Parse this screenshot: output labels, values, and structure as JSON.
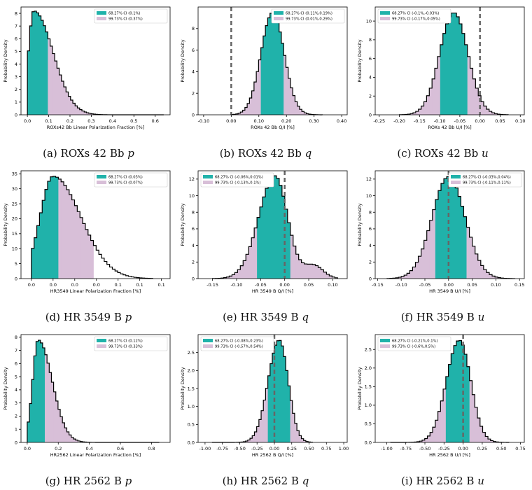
{
  "colors": {
    "ci68": "#20b2aa",
    "ci99": "#d8bfd8",
    "outline": "#000000",
    "refline": "#666666"
  },
  "panels": [
    {
      "caption_prefix": "(a) ROXs 42 Bb",
      "caption_var": "p",
      "chart_data": {
        "type": "histogram",
        "xlabel": "ROXs42 Bb Linear Polarization Fraction [%]",
        "ylabel": "Probability Density",
        "xlim": [
          -0.03,
          0.67
        ],
        "ylim": [
          0,
          8.5
        ],
        "xticks": [
          0.0,
          0.1,
          0.2,
          0.3,
          0.4,
          0.5,
          0.6
        ],
        "xtick_labels": [
          "0.0",
          "0.1",
          "0.2",
          "0.3",
          "0.4",
          "0.5",
          "0.6"
        ],
        "yticks": [
          0,
          1,
          2,
          3,
          4,
          5,
          6,
          7,
          8
        ],
        "dist": "skew",
        "peak_x": 0.03,
        "sigma_left": 0.025,
        "sigma_right": 0.09,
        "peak_y": 8.2,
        "hist_min": 0.0,
        "hist_max": 0.64,
        "bins": 60,
        "ci68": [
          0.0,
          0.1
        ],
        "ci99": [
          0.0,
          0.37
        ],
        "refline": null,
        "legend": {
          "pos": "top-right",
          "entries": [
            "68.27% CI (0.1%)",
            "99.73% CI (0.37%)"
          ]
        }
      }
    },
    {
      "caption_prefix": "(b) ROXs 42 Bb",
      "caption_var": "q",
      "chart_data": {
        "type": "histogram",
        "xlabel": "ROXs 42 Bb Q/I [%]",
        "ylabel": "Probability Density",
        "xlim": [
          -0.12,
          0.42
        ],
        "ylim": [
          0,
          10
        ],
        "xticks": [
          -0.1,
          0.0,
          0.1,
          0.2,
          0.3,
          0.4
        ],
        "xtick_labels": [
          "-0.10",
          "0.00",
          "0.10",
          "0.20",
          "0.30",
          "0.40"
        ],
        "yticks": [
          0,
          2,
          4,
          6,
          8
        ],
        "dist": "normal",
        "peak_x": 0.15,
        "sigma_left": 0.042,
        "sigma_right": 0.042,
        "peak_y": 9.5,
        "hist_min": 0.0,
        "hist_max": 0.33,
        "bins": 40,
        "ci68": [
          0.11,
          0.19
        ],
        "ci99": [
          0.01,
          0.29
        ],
        "refline": 0.0,
        "legend": {
          "pos": "top-right",
          "entries": [
            "68.27% CI (0.11%,0.19%)",
            "99.73% CI (0.01%,0.29%)"
          ]
        }
      }
    },
    {
      "caption_prefix": "(c) ROXs 42 Bb",
      "caption_var": "u",
      "chart_data": {
        "type": "histogram",
        "xlabel": "ROXs 42 Bb U/I [%]",
        "ylabel": "Probability Density",
        "xlim": [
          -0.26,
          0.11
        ],
        "ylim": [
          0,
          11.5
        ],
        "xticks": [
          -0.25,
          -0.2,
          -0.15,
          -0.1,
          -0.05,
          0.0,
          0.05,
          0.1
        ],
        "xtick_labels": [
          "-0.25",
          "-0.20",
          "-0.15",
          "-0.10",
          "-0.05",
          "0.00",
          "0.05",
          "0.10"
        ],
        "yticks": [
          0,
          2,
          4,
          6,
          8,
          10
        ],
        "dist": "normal",
        "peak_x": -0.065,
        "sigma_left": 0.035,
        "sigma_right": 0.035,
        "peak_y": 10.9,
        "hist_min": -0.2,
        "hist_max": 0.07,
        "bins": 40,
        "ci68": [
          -0.1,
          -0.03
        ],
        "ci99": [
          -0.17,
          0.05
        ],
        "refline": 0.0,
        "legend": {
          "pos": "top-left",
          "entries": [
            "68.27% CI (-0.1%,-0.03%)",
            "99.73% CI (-0.17%,0.05%)"
          ]
        }
      }
    },
    {
      "caption_prefix": "(d) HR 3549 B",
      "caption_var": "p",
      "chart_data": {
        "type": "histogram",
        "xlabel": "HR3549 Linear Polarization Fraction [%]",
        "ylabel": "Probability Density",
        "xlim": [
          -0.012,
          0.16
        ],
        "ylim": [
          0,
          36
        ],
        "xticks": [
          0.0,
          0.025,
          0.05,
          0.075,
          0.1,
          0.125,
          0.15
        ],
        "xtick_labels": [
          "0.0",
          "0.0",
          "0.0",
          "0.0",
          "0.1",
          "0.1",
          "0.1"
        ],
        "yticks": [
          0,
          5,
          10,
          15,
          20,
          25,
          30,
          35
        ],
        "dist": "skew",
        "peak_x": 0.025,
        "sigma_left": 0.015,
        "sigma_right": 0.032,
        "peak_y": 34.2,
        "hist_min": 0.0,
        "hist_max": 0.14,
        "bins": 45,
        "ci68": [
          0.0,
          0.03
        ],
        "ci99": [
          0.0,
          0.07
        ],
        "refline": null,
        "legend": {
          "pos": "top-right",
          "entries": [
            "68.27% CI (0.03%)",
            "99.73% CI (0.07%)"
          ]
        }
      }
    },
    {
      "caption_prefix": "(e) HR 3549 B",
      "caption_var": "q",
      "chart_data": {
        "type": "histogram",
        "xlabel": "HR 3549 B Q/I [%]",
        "ylabel": "Probability Density",
        "xlim": [
          -0.18,
          0.13
        ],
        "ylim": [
          0,
          13
        ],
        "xticks": [
          -0.15,
          -0.1,
          -0.05,
          0.0,
          0.05,
          0.1
        ],
        "xtick_labels": [
          "-0.15",
          "-0.10",
          "-0.05",
          "0.00",
          "0.05",
          "0.10"
        ],
        "yticks": [
          0,
          2,
          4,
          6,
          8,
          10,
          12
        ],
        "dist": "normal",
        "peak_x": -0.02,
        "sigma_left": 0.034,
        "sigma_right": 0.026,
        "peak_y": 12.4,
        "hist_min": -0.15,
        "hist_max": 0.11,
        "bins": 45,
        "ci68": [
          -0.06,
          0.01
        ],
        "ci99": [
          -0.13,
          0.1
        ],
        "refline": 0.0,
        "bump": [
          0.06,
          0.02,
          1.6
        ],
        "legend": {
          "pos": "top-left",
          "entries": [
            "68.27% CI (-0.06%,0.01%)",
            "99.73% CI (-0.13%,0.1%)"
          ]
        }
      }
    },
    {
      "caption_prefix": "(f) HR 3549 B",
      "caption_var": "u",
      "chart_data": {
        "type": "histogram",
        "xlabel": "HR 3549 B U/I [%]",
        "ylabel": "Probability Density",
        "xlim": [
          -0.155,
          0.16
        ],
        "ylim": [
          0,
          13
        ],
        "xticks": [
          -0.15,
          -0.1,
          -0.05,
          0.0,
          0.05,
          0.1,
          0.15
        ],
        "xtick_labels": [
          "-0.15",
          "-0.10",
          "-0.05",
          "0.00",
          "0.05",
          "0.10",
          "0.15"
        ],
        "yticks": [
          0,
          2,
          4,
          6,
          8,
          10,
          12
        ],
        "dist": "normal",
        "peak_x": 0.0,
        "sigma_left": 0.035,
        "sigma_right": 0.035,
        "peak_y": 12.3,
        "hist_min": -0.13,
        "hist_max": 0.14,
        "bins": 45,
        "ci68": [
          -0.03,
          0.04
        ],
        "ci99": [
          -0.11,
          0.11
        ],
        "refline": 0.0,
        "legend": {
          "pos": "top-right",
          "entries": [
            "68.27% CI (-0.03%,0.04%)",
            "99.73% CI (-0.11%,0.11%)"
          ]
        }
      }
    },
    {
      "caption_prefix": "(g) HR 2562 B",
      "caption_var": "p",
      "chart_data": {
        "type": "histogram",
        "xlabel": "HR2562 Linear Polarization Fraction [%]",
        "ylabel": "Probability Density",
        "xlim": [
          -0.04,
          0.92
        ],
        "ylim": [
          0,
          8.2
        ],
        "xticks": [
          0.0,
          0.2,
          0.4,
          0.6,
          0.8
        ],
        "xtick_labels": [
          "0.0",
          "0.2",
          "0.4",
          "0.6",
          "0.8"
        ],
        "yticks": [
          0,
          1,
          2,
          3,
          4,
          5,
          6,
          7,
          8
        ],
        "dist": "skew",
        "peak_x": 0.07,
        "sigma_left": 0.035,
        "sigma_right": 0.09,
        "peak_y": 7.8,
        "hist_min": 0.0,
        "hist_max": 0.85,
        "bins": 60,
        "ci68": [
          0.0,
          0.12
        ],
        "ci99": [
          0.0,
          0.33
        ],
        "refline": null,
        "legend": {
          "pos": "top-right",
          "entries": [
            "68.27% CI (0.12%)",
            "99.73% CI (0.33%)"
          ]
        }
      }
    },
    {
      "caption_prefix": "(h) HR 2562 B",
      "caption_var": "q",
      "chart_data": {
        "type": "histogram",
        "xlabel": "HR 2562 B Q/I [%]",
        "ylabel": "Probability Density",
        "xlim": [
          -1.1,
          1.05
        ],
        "ylim": [
          0,
          3.0
        ],
        "xticks": [
          -1.0,
          -0.75,
          -0.5,
          -0.25,
          0.0,
          0.25,
          0.5,
          0.75,
          1.0
        ],
        "xtick_labels": [
          "-1.00",
          "-0.75",
          "-0.50",
          "-0.25",
          "0.00",
          "0.25",
          "0.50",
          "0.75",
          "1.00"
        ],
        "yticks": [
          0.0,
          0.5,
          1.0,
          1.5,
          2.0,
          2.5
        ],
        "ytick_labels": [
          "0.0",
          "0.5",
          "1.0",
          "1.5",
          "2.0",
          "2.5"
        ],
        "dist": "normal",
        "peak_x": 0.07,
        "sigma_left": 0.16,
        "sigma_right": 0.13,
        "peak_y": 2.85,
        "hist_min": -0.9,
        "hist_max": 0.55,
        "bins": 45,
        "ci68": [
          -0.08,
          0.23
        ],
        "ci99": [
          -0.57,
          0.54
        ],
        "refline": 0.0,
        "legend": {
          "pos": "top-left",
          "entries": [
            "68.27% CI (-0.08%,0.23%)",
            "99.73% CI (-0.57%,0.54%)"
          ]
        }
      }
    },
    {
      "caption_prefix": "(i) HR 2562 B",
      "caption_var": "u",
      "chart_data": {
        "type": "histogram",
        "xlabel": "HR 2562 B U/I [%]",
        "ylabel": "Probability Density",
        "xlim": [
          -1.15,
          0.8
        ],
        "ylim": [
          0,
          2.9
        ],
        "xticks": [
          -1.0,
          -0.75,
          -0.5,
          -0.25,
          0.0,
          0.25,
          0.5,
          0.75
        ],
        "xtick_labels": [
          "-1.00",
          "-0.75",
          "-0.50",
          "-0.25",
          "0.00",
          "0.25",
          "0.50",
          "0.75"
        ],
        "yticks": [
          0.0,
          0.5,
          1.0,
          1.5,
          2.0,
          2.5
        ],
        "ytick_labels": [
          "0.0",
          "0.5",
          "1.0",
          "1.5",
          "2.0",
          "2.5"
        ],
        "dist": "normal",
        "peak_x": -0.05,
        "sigma_left": 0.17,
        "sigma_right": 0.15,
        "peak_y": 2.75,
        "hist_min": -0.95,
        "hist_max": 0.6,
        "bins": 45,
        "ci68": [
          -0.21,
          0.1
        ],
        "ci99": [
          -0.6,
          0.5
        ],
        "refline": 0.0,
        "legend": {
          "pos": "top-left",
          "entries": [
            "68.27% CI (-0.21%,0.1%)",
            "99.73% CI (-0.6%,0.5%)"
          ]
        }
      }
    }
  ]
}
